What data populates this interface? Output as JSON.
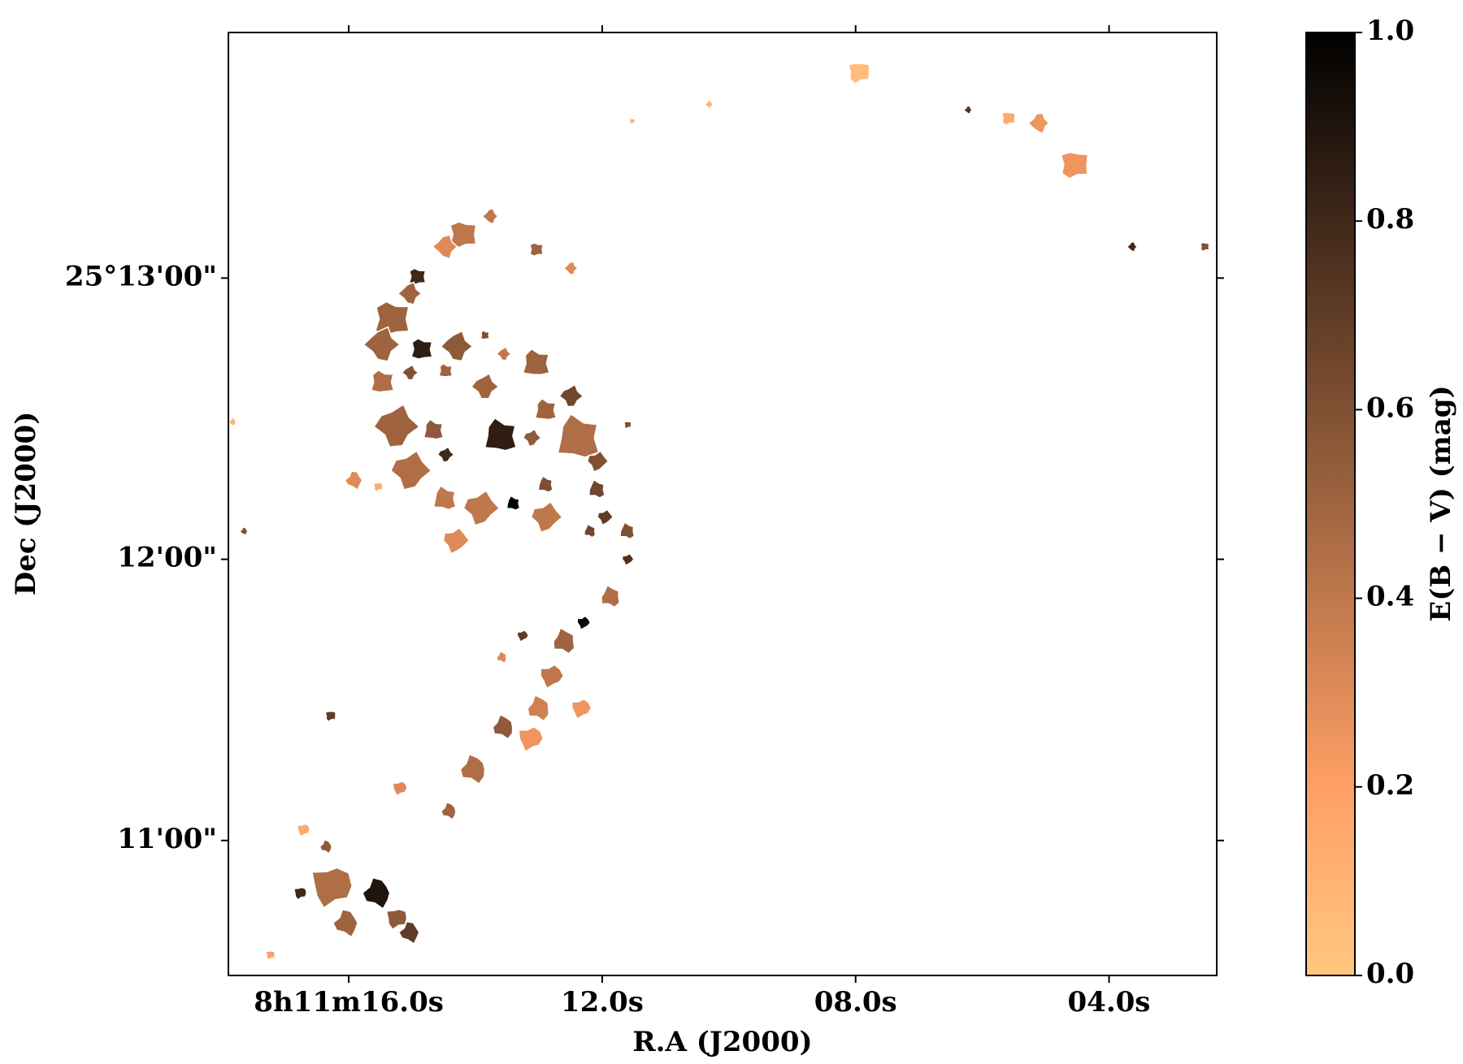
{
  "chart_data": {
    "type": "image",
    "xlabel": "R.A (J2000)",
    "ylabel": "Dec (J2000)",
    "colorbar_label": "E(B − V) (mag)",
    "xlim": [
      17.9,
      2.3
    ],
    "xticks": [
      {
        "value": 16,
        "label": "8h11m16.0s"
      },
      {
        "value": 12,
        "label": "12.0s"
      },
      {
        "value": 8,
        "label": "08.0s"
      },
      {
        "value": 4,
        "label": "04.0s"
      }
    ],
    "ylim": [
      31.2,
      232.4
    ],
    "yticks": [
      {
        "value": 180,
        "label": "25°13'00\""
      },
      {
        "value": 120,
        "label": "12'00\""
      },
      {
        "value": 60,
        "label": "11'00\""
      }
    ],
    "clim": [
      0,
      1
    ],
    "cticks": [
      {
        "value": 0,
        "label": "0.0"
      },
      {
        "value": 0.2,
        "label": "0.2"
      },
      {
        "value": 0.4,
        "label": "0.4"
      },
      {
        "value": 0.6,
        "label": "0.6"
      },
      {
        "value": 0.8,
        "label": "0.8"
      },
      {
        "value": 1,
        "label": "1.0"
      }
    ],
    "colormap": "copper_r",
    "x": [
      7.95,
      10.31,
      11.53,
      6.22,
      5.59,
      5.1,
      4.55,
      3.63,
      2.49,
      13.76,
      14.2,
      14.47,
      13.04,
      12.49,
      14.92,
      15.03,
      15.32,
      15.47,
      14.85,
      14.29,
      13.85,
      13.55,
      15.47,
      15.03,
      14.47,
      13.85,
      13.04,
      12.49,
      12.89,
      15.25,
      14.66,
      14.47,
      13.6,
      13.11,
      12.37,
      15.03,
      14.48,
      13.92,
      13.4,
      12.89,
      12.89,
      12.08,
      12.08,
      11.96,
      11.6,
      14.32,
      12.19,
      11.6,
      11.86,
      12.3,
      12.59,
      13.26,
      13.58,
      12.81,
      12.99,
      12.34,
      13.55,
      13.14,
      14.02,
      15.2,
      14.41,
      16.72,
      16.35,
      16.28,
      15.54,
      16.77,
      16.03,
      15.25,
      15.03,
      17.24,
      15.91,
      15.54,
      17.65,
      16.29,
      17.83,
      11.6
    ],
    "y": [
      223.9,
      217.1,
      213.5,
      215.9,
      214.1,
      213.1,
      204.2,
      186.7,
      186.7,
      193.2,
      189.3,
      186.7,
      186.1,
      182.1,
      180.3,
      176.7,
      171.3,
      165.8,
      164.8,
      165.4,
      167.8,
      163.8,
      157.8,
      159.8,
      160.2,
      156.8,
      161.8,
      154.8,
      151.8,
      148.3,
      147.5,
      142.3,
      146.3,
      145.9,
      145.9,
      138.9,
      132.9,
      130.9,
      131.9,
      129.0,
      135.9,
      140.9,
      134.9,
      129.0,
      126.0,
      124.0,
      126.0,
      120.0,
      112.0,
      106.5,
      102.5,
      103.7,
      99.1,
      95.1,
      88.2,
      88.2,
      84.2,
      81.8,
      75.2,
      71.2,
      66.3,
      62.3,
      58.7,
      50.3,
      48.8,
      48.8,
      42.4,
      43.4,
      40.4,
      35.6,
      136.9,
      135.5,
      126.0,
      86.6,
      149.3,
      148.7
    ],
    "sizes": [
      5.6,
      2,
      1.6,
      2,
      3.6,
      4.8,
      7.2,
      2.4,
      2.4,
      3.6,
      7,
      5.6,
      3.6,
      3.2,
      4.4,
      5.2,
      9,
      8,
      5.6,
      7,
      2.4,
      3.2,
      6,
      3.6,
      3.6,
      6,
      7,
      5.2,
      5.6,
      10,
      5.2,
      3.6,
      8.4,
      4,
      11,
      9,
      6,
      8,
      3.6,
      7,
      4,
      4.8,
      4.4,
      3.6,
      4,
      6,
      3.2,
      2.8,
      5.2,
      3.2,
      6,
      2.8,
      2.8,
      5.6,
      6,
      4.8,
      5.6,
      6,
      6.8,
      3.6,
      4,
      3.2,
      3.2,
      10,
      7.2,
      3.2,
      6.4,
      5.2,
      5.2,
      2.4,
      4.4,
      2.4,
      2,
      2.8,
      2,
      2
    ],
    "values": [
      0.05,
      0.1,
      0.1,
      0.75,
      0.15,
      0.25,
      0.25,
      0.8,
      0.6,
      0.4,
      0.4,
      0.3,
      0.5,
      0.3,
      0.8,
      0.5,
      0.5,
      0.5,
      0.85,
      0.55,
      0.6,
      0.4,
      0.45,
      0.6,
      0.5,
      0.5,
      0.5,
      0.65,
      0.5,
      0.5,
      0.55,
      0.8,
      0.85,
      0.55,
      0.45,
      0.45,
      0.4,
      0.4,
      1.0,
      0.4,
      0.6,
      0.6,
      0.65,
      0.7,
      0.6,
      0.3,
      0.65,
      0.75,
      0.45,
      0.95,
      0.5,
      0.7,
      0.3,
      0.4,
      0.35,
      0.25,
      0.55,
      0.25,
      0.45,
      0.3,
      0.5,
      0.15,
      0.55,
      0.45,
      0.9,
      0.8,
      0.5,
      0.55,
      0.7,
      0.2,
      0.3,
      0.15,
      0.6,
      0.7,
      0.1,
      0.6
    ]
  }
}
